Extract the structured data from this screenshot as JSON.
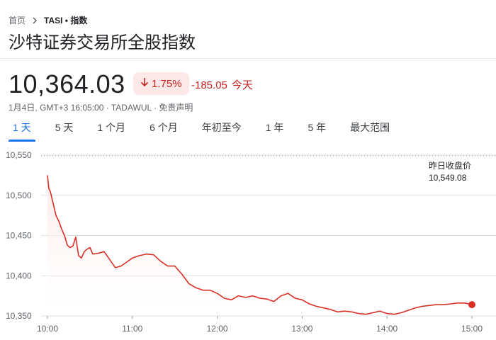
{
  "breadcrumb": {
    "home": "首页",
    "current": "TASI • 指数"
  },
  "title": "沙特证券交易所全股指数",
  "quote": {
    "price": "10,364.03",
    "change_pct": "1.75%",
    "change_abs": "-185.05",
    "period": "今天",
    "direction_icon": "arrow-down-icon",
    "meta": "1月4日, GMT+3 16:05:00 · TADAWUL · 免责声明"
  },
  "tabs": [
    {
      "label": "1 天",
      "active": true
    },
    {
      "label": "5 天",
      "active": false
    },
    {
      "label": "1 个月",
      "active": false
    },
    {
      "label": "6 个月",
      "active": false
    },
    {
      "label": "年初至今",
      "active": false
    },
    {
      "label": "1 年",
      "active": false
    },
    {
      "label": "5 年",
      "active": false
    },
    {
      "label": "最大范围",
      "active": false
    }
  ],
  "prev_close": {
    "label": "昨日收盘价",
    "value": "10,549.08"
  },
  "colors": {
    "line": "#d93025",
    "fill": "#fce8e6",
    "negative": "#c5221f",
    "accent": "#1a73e8"
  },
  "chart_data": {
    "type": "area",
    "x_ticks": [
      "10:00",
      "11:00",
      "12:00",
      "13:00",
      "14:00",
      "15:00"
    ],
    "y_ticks": [
      "10,350",
      "10,400",
      "10,450",
      "10,500",
      "10,550"
    ],
    "ylim": [
      10350,
      10550
    ],
    "xlim": [
      0,
      300
    ],
    "reference_line": 10549.08,
    "series": [
      {
        "x": [
          0,
          1,
          2,
          4,
          6,
          8,
          10,
          12,
          14,
          16,
          18,
          20,
          22,
          24,
          26,
          28,
          30,
          32,
          36,
          40,
          44,
          48,
          52,
          56,
          60,
          65,
          70,
          75,
          80,
          85,
          90,
          95,
          100,
          105,
          110,
          115,
          120,
          125,
          130,
          135,
          140,
          145,
          150,
          155,
          160,
          165,
          170,
          175,
          180,
          185,
          190,
          195,
          200,
          205,
          210,
          215,
          220,
          225,
          230,
          235,
          240,
          245,
          250,
          255,
          260,
          265,
          270,
          275,
          280,
          285,
          290,
          295,
          300
        ],
        "values": [
          10525,
          10508,
          10505,
          10490,
          10475,
          10468,
          10458,
          10450,
          10438,
          10435,
          10437,
          10448,
          10425,
          10422,
          10430,
          10433,
          10435,
          10427,
          10428,
          10430,
          10420,
          10410,
          10412,
          10417,
          10422,
          10425,
          10427,
          10426,
          10418,
          10412,
          10412,
          10402,
          10390,
          10385,
          10382,
          10382,
          10378,
          10372,
          10370,
          10375,
          10373,
          10375,
          10372,
          10371,
          10368,
          10375,
          10378,
          10372,
          10370,
          10365,
          10362,
          10360,
          10358,
          10355,
          10356,
          10355,
          10353,
          10352,
          10354,
          10356,
          10353,
          10352,
          10354,
          10357,
          10360,
          10362,
          10363,
          10364,
          10364,
          10365,
          10366,
          10366,
          10364
        ]
      }
    ]
  }
}
